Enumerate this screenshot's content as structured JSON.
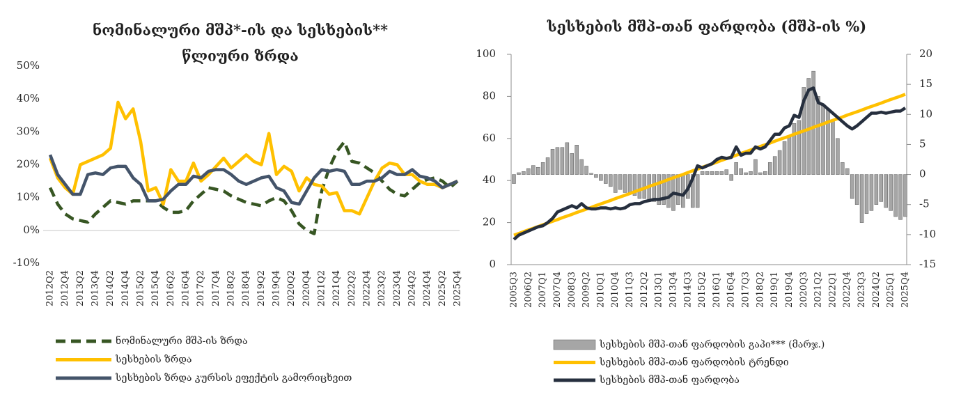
{
  "chart_data": [
    {
      "type": "line",
      "title": [
        "ნომინალური მშპ*-ის და სესხების**",
        "წლიური ზრდა"
      ],
      "categories": [
        "2012Q2",
        null,
        "2012Q4",
        null,
        "2013Q2",
        null,
        "2013Q4",
        null,
        "2014Q2",
        null,
        "2014Q4",
        null,
        "2015Q2",
        null,
        "2015Q4",
        null,
        "2016Q2",
        null,
        "2016Q4",
        null,
        "2017Q2",
        null,
        "2017Q4",
        null,
        "2018Q2",
        null,
        "2018Q4",
        null,
        "2019Q2",
        null,
        "2019Q4",
        null,
        "2020Q2",
        null,
        "2020Q4",
        null,
        "2021Q2",
        null,
        "2021Q4",
        null,
        "2022Q2",
        null,
        "2022Q4",
        null,
        "2023Q2",
        null,
        "2023Q4",
        null,
        "2024Q2",
        null,
        "2024Q4",
        null,
        "2025Q2",
        null,
        "2025Q4"
      ],
      "ylim": [
        -10,
        50
      ],
      "yticks": [
        {
          "value": -10,
          "label": "-10%"
        },
        {
          "value": 0,
          "label": "0%"
        },
        {
          "value": 10,
          "label": "10%"
        },
        {
          "value": 20,
          "label": "20%"
        },
        {
          "value": 30,
          "label": "30%"
        },
        {
          "value": 40,
          "label": "40%"
        },
        {
          "value": 50,
          "label": "50%"
        }
      ],
      "series": [
        {
          "name": "ნომინალური მშპ-ის ზრდა",
          "color": "#375623",
          "line_style": "dashed",
          "values": [
            13,
            8,
            5,
            3.5,
            3,
            2.5,
            5,
            7,
            9,
            8.5,
            8,
            9,
            9,
            9,
            9,
            7,
            5.5,
            5.5,
            6,
            9,
            11,
            13,
            12.5,
            12,
            10.5,
            9.5,
            8.5,
            8,
            7.5,
            9,
            10,
            9,
            6,
            2,
            0,
            -1,
            12,
            19,
            24,
            27,
            21,
            20.5,
            19,
            17.5,
            15,
            12.5,
            11,
            10.5,
            12.5,
            14.5,
            15.5,
            16,
            15,
            13,
            15
          ]
        },
        {
          "name": "სესხების ზრდა",
          "color": "#ffc000",
          "line_style": "solid",
          "values": [
            22,
            16,
            13,
            11,
            20,
            21,
            22,
            23,
            25,
            39,
            34,
            37,
            27,
            12,
            13,
            8,
            18.5,
            15,
            15,
            20.5,
            15,
            17,
            19.5,
            22,
            19,
            21,
            23,
            21,
            20,
            29.5,
            17,
            19.5,
            18,
            12,
            16,
            14,
            13.5,
            11,
            11.5,
            6,
            6,
            5,
            10,
            15,
            19,
            20.5,
            20,
            17,
            17,
            15,
            14,
            14,
            13,
            14,
            15
          ]
        },
        {
          "name": "სესხების ზრდა კურსის ეფექტის გამორიცხვით",
          "color": "#44546a",
          "line_style": "solid",
          "values": [
            23,
            17,
            14,
            11,
            11,
            17,
            17.5,
            17,
            19,
            19.5,
            19.5,
            16,
            14,
            9,
            9,
            9.5,
            12,
            14,
            14,
            16.5,
            16,
            18,
            18.5,
            18.5,
            17,
            15,
            14,
            15,
            16,
            16.5,
            13,
            12,
            8.5,
            8,
            12,
            16,
            18.5,
            18,
            18.5,
            18,
            14,
            14,
            15,
            15,
            16,
            18,
            17,
            17,
            18.5,
            16.5,
            16,
            15,
            13,
            14,
            15
          ]
        }
      ]
    },
    {
      "type": "combo",
      "title": [
        "სესხების მშპ-თან ფარდობა (მშპ-ის %)"
      ],
      "categories": [
        "2005Q3",
        null,
        null,
        "2006Q2",
        null,
        null,
        "2007Q1",
        null,
        null,
        "2007Q4",
        null,
        null,
        "2008Q3",
        null,
        null,
        "2009Q2",
        null,
        null,
        "2010Q1",
        null,
        null,
        "2010Q4",
        null,
        null,
        "2011Q3",
        null,
        null,
        "2012Q2",
        null,
        null,
        "2013Q1",
        null,
        null,
        "2013Q4",
        null,
        null,
        "2014Q3",
        null,
        null,
        "2015Q2",
        null,
        null,
        "2016Q1",
        null,
        null,
        "2016Q4",
        null,
        null,
        "2017Q3",
        null,
        null,
        "2018Q2",
        null,
        null,
        "2019Q1",
        null,
        null,
        "2019Q4",
        null,
        null,
        "2020Q3",
        null,
        null,
        "2021Q2",
        null,
        null,
        "2022Q1",
        null,
        null,
        "2022Q4",
        null,
        null,
        "2023Q3",
        null,
        null,
        "2024Q2",
        null,
        null,
        "2025Q1",
        null,
        null,
        "2025Q4"
      ],
      "ylim": [
        0,
        100
      ],
      "yticks": [
        0,
        20,
        40,
        60,
        80,
        100
      ],
      "y2lim": [
        -15,
        20
      ],
      "y2ticks": [
        -15,
        -10,
        -5,
        0,
        5,
        10,
        15,
        20
      ],
      "series": [
        {
          "name": "სესხების მშპ-თან ფარდობის გაპი*** (მარჯ.)",
          "type": "bar",
          "axis": "y2",
          "color": "#a6a6a6",
          "values": [
            -1.5,
            0.3,
            0.5,
            1,
            1.5,
            1.2,
            2,
            2.8,
            4.2,
            4.5,
            4.5,
            5.3,
            3.5,
            4.9,
            2.5,
            1.4,
            0.2,
            -0.5,
            -1,
            -1.5,
            -2,
            -3,
            -2.5,
            -3,
            -3,
            -3.5,
            -4,
            -4,
            -4.5,
            -4.5,
            -5,
            -5,
            -5.5,
            -6,
            -5,
            -5.5,
            -4,
            -5.5,
            -5.5,
            0.5,
            0.5,
            0.5,
            0.5,
            0.5,
            0.8,
            -1,
            2,
            1,
            0.3,
            0.5,
            2.5,
            0.3,
            0.5,
            2,
            3,
            4,
            5.5,
            6.5,
            8.5,
            9,
            14.5,
            16,
            17.2,
            13,
            11.5,
            11,
            9,
            6,
            2,
            1,
            -4,
            -5,
            -8,
            -6.5,
            -6,
            -5,
            -4.5,
            -5.5,
            -6,
            -7,
            -7.5,
            -7
          ]
        },
        {
          "name": "სესხების მშპ-თან ფარდობის ტრენდი",
          "type": "line",
          "color": "#ffc000",
          "values": [
            14.0,
            14.8,
            15.7,
            16.5,
            17.3,
            18.1,
            19.0,
            19.8,
            20.6,
            21.4,
            22.3,
            23.1,
            23.9,
            24.8,
            25.6,
            26.4,
            27.2,
            28.1,
            28.9,
            29.7,
            30.5,
            31.4,
            32.2,
            33.0,
            33.8,
            34.7,
            35.5,
            36.3,
            37.2,
            38.0,
            38.8,
            39.6,
            40.5,
            41.3,
            42.1,
            42.9,
            43.8,
            44.6,
            45.4,
            46.3,
            47.1,
            47.9,
            48.7,
            49.6,
            50.4,
            51.2,
            52.0,
            52.9,
            53.7,
            54.5,
            55.4,
            56.2,
            57.0,
            57.8,
            58.7,
            59.5,
            60.3,
            61.1,
            62.0,
            62.8,
            63.6,
            64.4,
            65.3,
            66.1,
            66.9,
            67.8,
            68.6,
            69.4,
            70.2,
            71.1,
            71.9,
            72.7,
            73.5,
            74.4,
            75.2,
            76.0,
            76.8,
            77.7,
            78.5,
            79.3,
            80.1,
            81.0
          ]
        },
        {
          "name": "სესხების მშპ-თან ფარდობა",
          "type": "line",
          "color": "#262f3e",
          "values": [
            12,
            14,
            15,
            16,
            17,
            18,
            18.5,
            20,
            22,
            25,
            26,
            27,
            28,
            27,
            29,
            27,
            26.5,
            26.5,
            27,
            27,
            26.5,
            27,
            26.5,
            27,
            28.5,
            29,
            29,
            30,
            30.5,
            31,
            31,
            31.5,
            32,
            34,
            33.5,
            33,
            36,
            41,
            47,
            46,
            47,
            48,
            50,
            51,
            50.5,
            51,
            56,
            52,
            53,
            53,
            56,
            55,
            56,
            59,
            62,
            62,
            65,
            66,
            71,
            70,
            78,
            83,
            84,
            77,
            76,
            74,
            72,
            70,
            68,
            66,
            64.5,
            66,
            68,
            70,
            72,
            72,
            72.5,
            72,
            72.5,
            73,
            73,
            74.5
          ]
        }
      ]
    }
  ]
}
